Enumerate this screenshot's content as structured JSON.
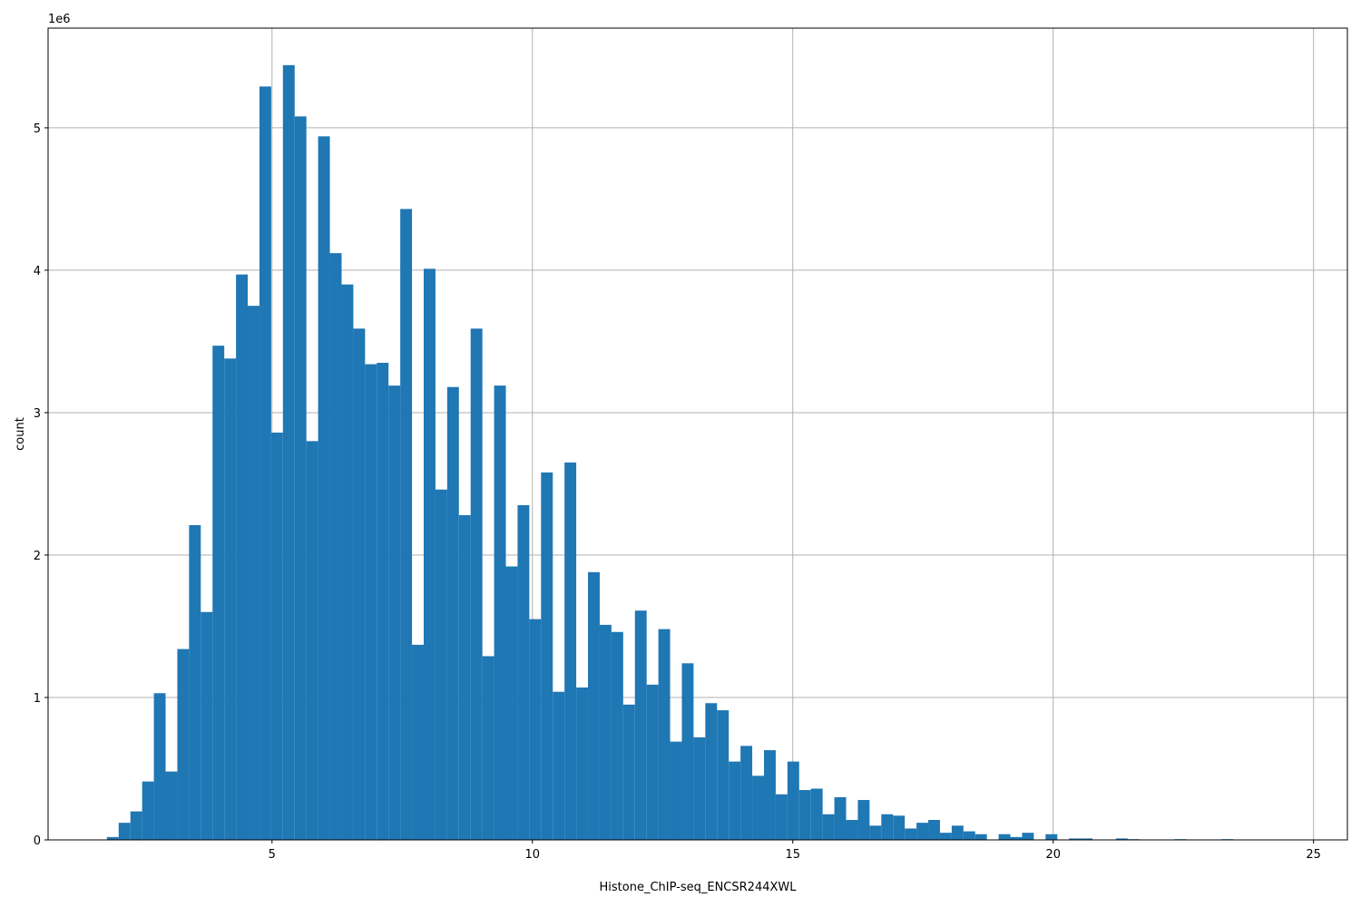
{
  "chart_data": {
    "type": "bar",
    "subtype": "histogram",
    "title": "",
    "xlabel": "Histone_ChIP-seq_ENCSR244XWL",
    "ylabel": "count",
    "y_offset_text": "1e6",
    "y_multiplier": 1000000,
    "xlim": [
      0.7,
      25.65
    ],
    "ylim": [
      0,
      5.7
    ],
    "xticks": [
      5,
      10,
      15,
      20,
      25
    ],
    "yticks": [
      0,
      1,
      2,
      3,
      4,
      5
    ],
    "grid": true,
    "bar_color": "#1f77b4",
    "bins": {
      "start": 1.83,
      "width": 0.2253,
      "values": [
        0.02,
        0.12,
        0.2,
        0.41,
        1.03,
        0.48,
        1.34,
        2.21,
        1.6,
        3.47,
        3.38,
        3.97,
        3.75,
        5.29,
        2.86,
        5.44,
        5.08,
        2.8,
        4.94,
        4.12,
        3.9,
        3.59,
        3.34,
        3.35,
        3.19,
        4.43,
        1.37,
        4.01,
        2.46,
        3.18,
        2.28,
        3.59,
        1.29,
        3.19,
        1.92,
        2.35,
        1.55,
        2.58,
        1.04,
        2.65,
        1.07,
        1.88,
        1.51,
        1.46,
        0.95,
        1.61,
        1.09,
        1.48,
        0.69,
        1.24,
        0.72,
        0.96,
        0.91,
        0.55,
        0.66,
        0.45,
        0.63,
        0.32,
        0.55,
        0.35,
        0.36,
        0.18,
        0.3,
        0.14,
        0.28,
        0.1,
        0.18,
        0.17,
        0.08,
        0.12,
        0.14,
        0.05,
        0.1,
        0.06,
        0.04,
        0.0,
        0.04,
        0.02,
        0.05,
        0.0,
        0.04,
        0.0,
        0.01,
        0.01,
        0.0,
        0.0,
        0.01,
        0.005,
        0.0,
        0.0,
        0.0,
        0.005,
        0.0,
        0.0,
        0.0,
        0.005,
        0.0,
        0.0,
        0.0,
        0.0
      ]
    }
  }
}
